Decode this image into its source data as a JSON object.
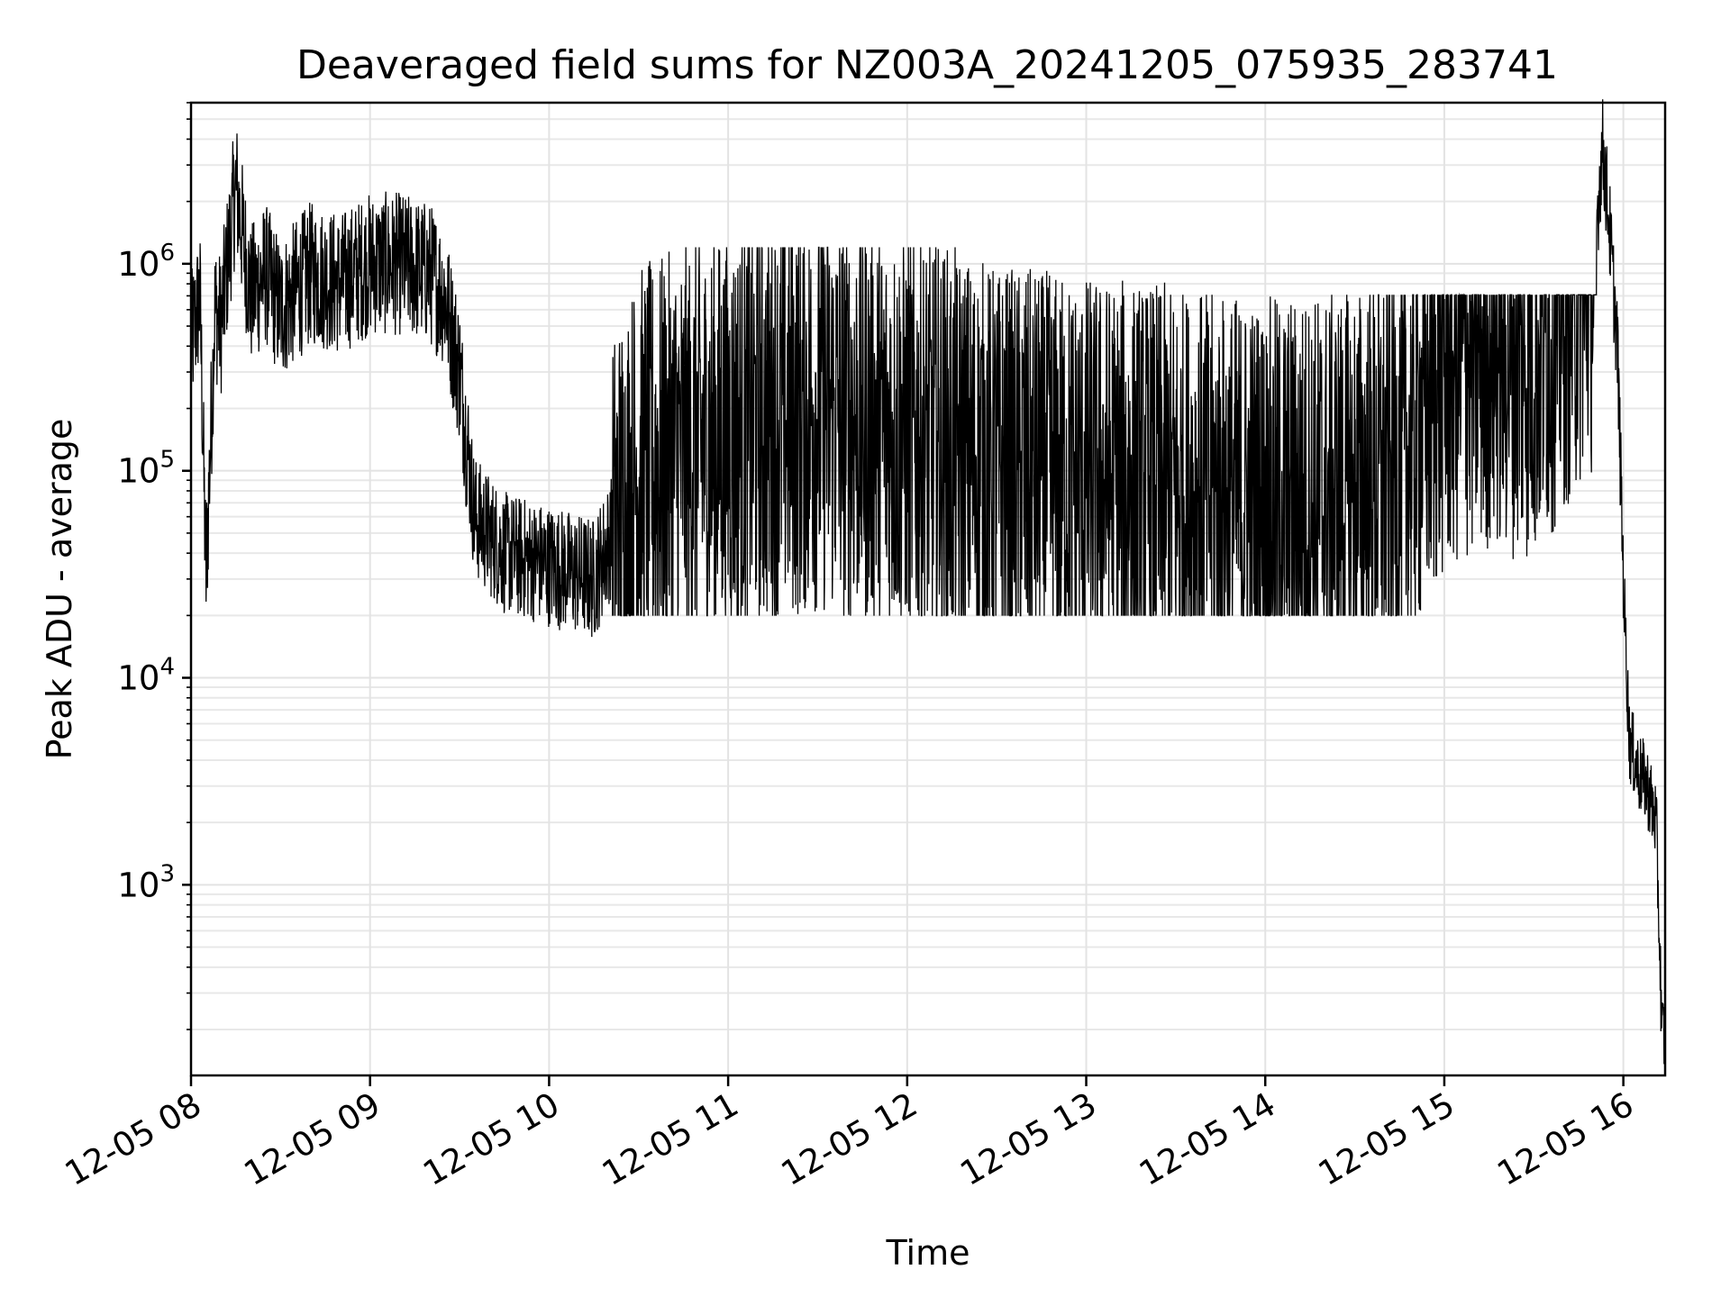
{
  "chart_data": {
    "type": "line",
    "title": "Deaveraged field sums for NZ003A_20241205_075935_283741",
    "xlabel": "Time",
    "ylabel": "Peak ADU - average",
    "x_ticks": [
      "12-05 08",
      "12-05 09",
      "12-05 10",
      "12-05 11",
      "12-05 12",
      "12-05 13",
      "12-05 14",
      "12-05 15",
      "12-05 16"
    ],
    "y_ticks": [
      {
        "base": "10",
        "exp": "3",
        "value": 1000
      },
      {
        "base": "10",
        "exp": "4",
        "value": 10000
      },
      {
        "base": "10",
        "exp": "5",
        "value": 100000
      },
      {
        "base": "10",
        "exp": "6",
        "value": 1000000
      }
    ],
    "yscale": "log",
    "xlim": [
      "2024-12-05 08:00",
      "2024-12-05 16:14"
    ],
    "ylim": [
      120,
      6000000
    ],
    "grid": true,
    "line_color": "#000000",
    "series": [
      {
        "x": [
          "2024-12-05 08:00",
          "2024-12-05 08:03",
          "2024-12-05 08:05",
          "2024-12-05 08:08",
          "2024-12-05 08:10",
          "2024-12-05 08:15",
          "2024-12-05 08:20",
          "2024-12-05 08:25",
          "2024-12-05 08:30",
          "2024-12-05 08:40",
          "2024-12-05 08:50",
          "2024-12-05 09:00",
          "2024-12-05 09:10",
          "2024-12-05 09:20",
          "2024-12-05 09:25",
          "2024-12-05 09:30",
          "2024-12-05 09:35",
          "2024-12-05 09:45",
          "2024-12-05 10:00",
          "2024-12-05 10:15",
          "2024-12-05 10:30",
          "2024-12-05 11:00",
          "2024-12-05 11:30",
          "2024-12-05 12:00",
          "2024-12-05 12:30",
          "2024-12-05 13:00",
          "2024-12-05 13:30",
          "2024-12-05 14:00",
          "2024-12-05 14:30",
          "2024-12-05 14:45",
          "2024-12-05 15:00",
          "2024-12-05 15:15",
          "2024-12-05 15:30",
          "2024-12-05 15:45",
          "2024-12-05 15:50",
          "2024-12-05 15:53",
          "2024-12-05 15:55",
          "2024-12-05 15:58",
          "2024-12-05 16:00",
          "2024-12-05 16:02",
          "2024-12-05 16:05",
          "2024-12-05 16:08",
          "2024-12-05 16:11",
          "2024-12-05 16:13"
        ],
        "values": [
          400000,
          700000,
          30000,
          600000,
          500000,
          2400000,
          700000,
          900000,
          600000,
          900000,
          800000,
          1000000,
          1000000,
          900000,
          700000,
          300000,
          60000,
          40000,
          35000,
          30000,
          100000,
          150000,
          200000,
          150000,
          100000,
          90000,
          80000,
          70000,
          80000,
          100000,
          300000,
          400000,
          350000,
          800000,
          1000000,
          3700000,
          1800000,
          400000,
          30000,
          5000,
          3500,
          3000,
          2000,
          190
        ]
      }
    ]
  }
}
